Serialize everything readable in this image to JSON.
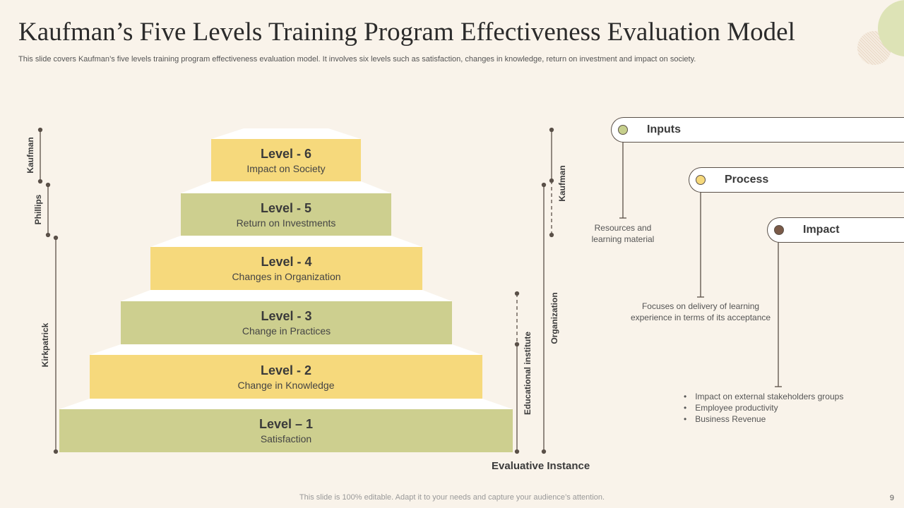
{
  "title": "Kaufman’s Five Levels Training Program Effectiveness Evaluation Model",
  "subtitle": "This slide covers Kaufman’s five levels training program effectiveness evaluation model. It involves six levels such as satisfaction, changes in knowledge, return on investment and impact on society.",
  "levels": [
    {
      "title": "Level - 6",
      "desc": "Impact on Society"
    },
    {
      "title": "Level - 5",
      "desc": "Return on Investments"
    },
    {
      "title": "Level - 4",
      "desc": "Changes in Organization"
    },
    {
      "title": "Level - 3",
      "desc": "Change in Practices"
    },
    {
      "title": "Level - 2",
      "desc": "Change in Knowledge"
    },
    {
      "title": "Level – 1",
      "desc": "Satisfaction"
    }
  ],
  "left_brackets": [
    "Kaufman",
    "Phillips",
    "Kirkpatrick"
  ],
  "right_brackets": {
    "kaufman": "Kaufman",
    "organization": "Organization",
    "educational": "Educational institute",
    "axis_label": "Evaluative Instance"
  },
  "cards": [
    {
      "label": "Inputs",
      "note": [
        "Resources and",
        "learning material"
      ],
      "color": "#c6cf8c"
    },
    {
      "label": "Process",
      "note": [
        "Focuses on delivery  of learning",
        "experience in terms of its acceptance"
      ],
      "color": "#f6d97c"
    },
    {
      "label": "Impact",
      "bullets": [
        "Impact on external stakeholders groups",
        "Employee productivity",
        "Business Revenue"
      ],
      "color": "#7a5a48"
    }
  ],
  "footer": "This slide is 100% editable. Adapt it to your needs and capture your audience’s attention.",
  "page_number": "9"
}
